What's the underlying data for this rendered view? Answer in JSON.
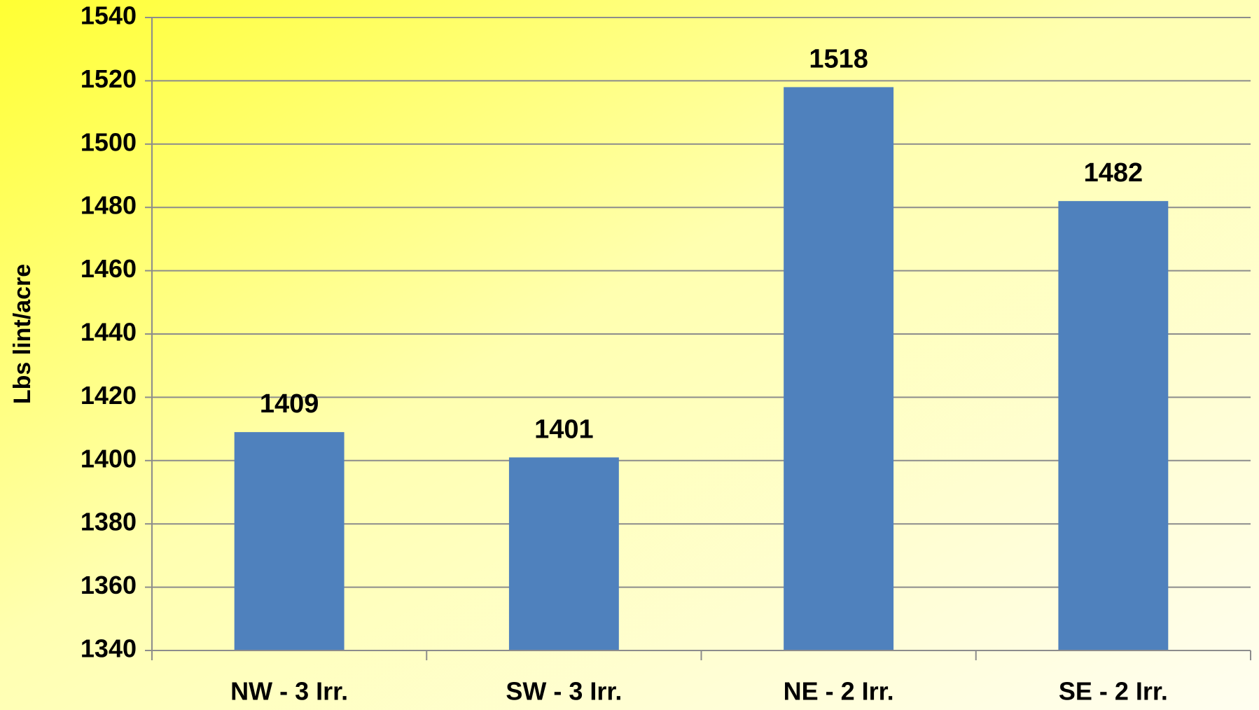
{
  "chart_data": {
    "type": "bar",
    "y_label": "Lbs lint/acre",
    "categories": [
      "NW - 3 Irr.",
      "SW - 3 Irr.",
      "NE - 2 Irr.",
      "SE - 2 Irr."
    ],
    "values": [
      1409,
      1401,
      1518,
      1482
    ],
    "color": "#4f81bd",
    "ylim": [
      1340,
      1540
    ],
    "yticks": [
      1340,
      1360,
      1380,
      1400,
      1420,
      1440,
      1460,
      1480,
      1500,
      1520,
      1540
    ],
    "grid": true
  }
}
